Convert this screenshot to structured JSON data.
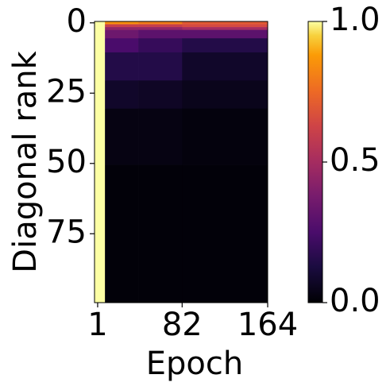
{
  "chart_data": {
    "type": "heatmap",
    "xlabel": "Epoch",
    "ylabel": "Diagonal rank",
    "x_edges": [
      -2,
      8,
      40,
      82,
      164
    ],
    "y_edges": [
      -0.5,
      0.5,
      1.5,
      2.5,
      5.5,
      10.5,
      20.5,
      30.5,
      50.5,
      99.5
    ],
    "values": [
      [
        1,
        0.85,
        0.8,
        0.7
      ],
      [
        1,
        0.6,
        0.6,
        0.65
      ],
      [
        1,
        0.45,
        0.45,
        0.5
      ],
      [
        1,
        0.35,
        0.3,
        0.3
      ],
      [
        1,
        0.25,
        0.2,
        0.15
      ],
      [
        1,
        0.15,
        0.15,
        0.08
      ],
      [
        1,
        0.08,
        0.07,
        0.05
      ],
      [
        1,
        0.03,
        0.03,
        0.02
      ],
      [
        1,
        0.01,
        0.01,
        0.01
      ]
    ],
    "xlim": [
      -2,
      164
    ],
    "ylim": [
      99.5,
      -0.5
    ],
    "xticks": [
      1,
      82,
      164
    ],
    "yticks": [
      0,
      25,
      50,
      75
    ],
    "colormap": "inferno",
    "clim": [
      0,
      1
    ],
    "cticks": [
      {
        "value": 0,
        "label": "0.0"
      },
      {
        "value": 0.5,
        "label": "0.5"
      },
      {
        "value": 1,
        "label": "1.0"
      }
    ]
  }
}
